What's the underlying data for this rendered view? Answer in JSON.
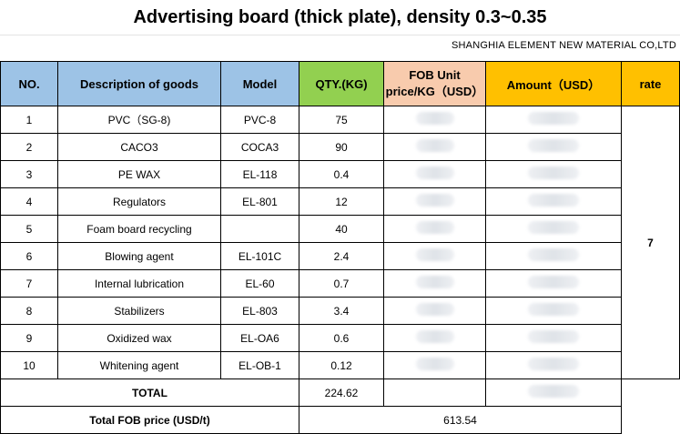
{
  "title": "Advertising board (thick plate), density 0.3~0.35",
  "company": "SHANGHIA  ELEMENT NEW MATERIAL CO,LTD",
  "headers": {
    "no": "NO.",
    "desc": "Description of goods",
    "model": "Model",
    "qty": "QTY.(KG)",
    "fob_line1": "FOB Unit",
    "fob_line2": "price/KG（USD）",
    "amount": "Amount（USD）",
    "rate": "rate"
  },
  "rows": [
    {
      "no": "1",
      "desc": "PVC（SG-8)",
      "model": "PVC-8",
      "qty": "75"
    },
    {
      "no": "2",
      "desc": "CACO3",
      "model": "COCA3",
      "qty": "90"
    },
    {
      "no": "3",
      "desc": "PE WAX",
      "model": "EL-118",
      "qty": "0.4"
    },
    {
      "no": "4",
      "desc": "Regulators",
      "model": "EL-801",
      "qty": "12"
    },
    {
      "no": "5",
      "desc": "Foam board recycling",
      "model": "",
      "qty": "40"
    },
    {
      "no": "6",
      "desc": "Blowing agent",
      "model": "EL-101C",
      "qty": "2.4"
    },
    {
      "no": "7",
      "desc": "Internal lubrication",
      "model": "EL-60",
      "qty": "0.7"
    },
    {
      "no": "8",
      "desc": "Stabilizers",
      "model": "EL-803",
      "qty": "3.4"
    },
    {
      "no": "9",
      "desc": "Oxidized wax",
      "model": "EL-OA6",
      "qty": "0.6"
    },
    {
      "no": "10",
      "desc": "Whitening agent",
      "model": "EL-OB-1",
      "qty": "0.12"
    }
  ],
  "rate_value": "7",
  "total": {
    "label": "TOTAL",
    "qty": "224.62"
  },
  "fob_total": {
    "label": "Total FOB price (USD/t)",
    "value": "613.54"
  }
}
